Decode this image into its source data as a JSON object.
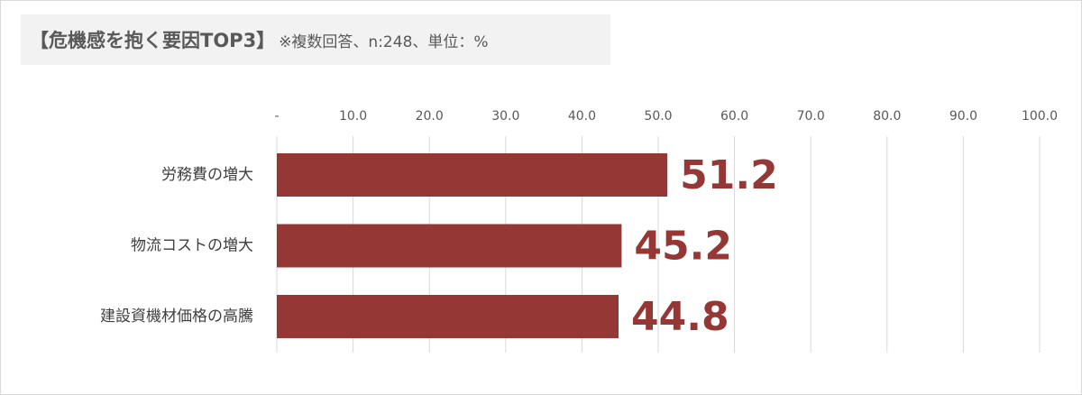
{
  "chart_data": {
    "type": "hbar",
    "title": "【危機感を抱く要因TOP3】",
    "subtitle": "※複数回答、n:248、単位：%",
    "categories": [
      "労務費の増大",
      "物流コストの増大",
      "建設資機材価格の高騰"
    ],
    "values": [
      51.2,
      45.2,
      44.8
    ],
    "color": "#953735",
    "xlim": [
      0,
      100
    ],
    "xticks": [
      {
        "value": 0,
        "label": "-"
      },
      {
        "value": 10,
        "label": "10.0"
      },
      {
        "value": 20,
        "label": "20.0"
      },
      {
        "value": 30,
        "label": "30.0"
      },
      {
        "value": 40,
        "label": "40.0"
      },
      {
        "value": 50,
        "label": "50.0"
      },
      {
        "value": 60,
        "label": "60.0"
      },
      {
        "value": 70,
        "label": "70.0"
      },
      {
        "value": 80,
        "label": "80.0"
      },
      {
        "value": 90,
        "label": "90.0"
      },
      {
        "value": 100,
        "label": "100.0"
      }
    ],
    "grid": true
  }
}
